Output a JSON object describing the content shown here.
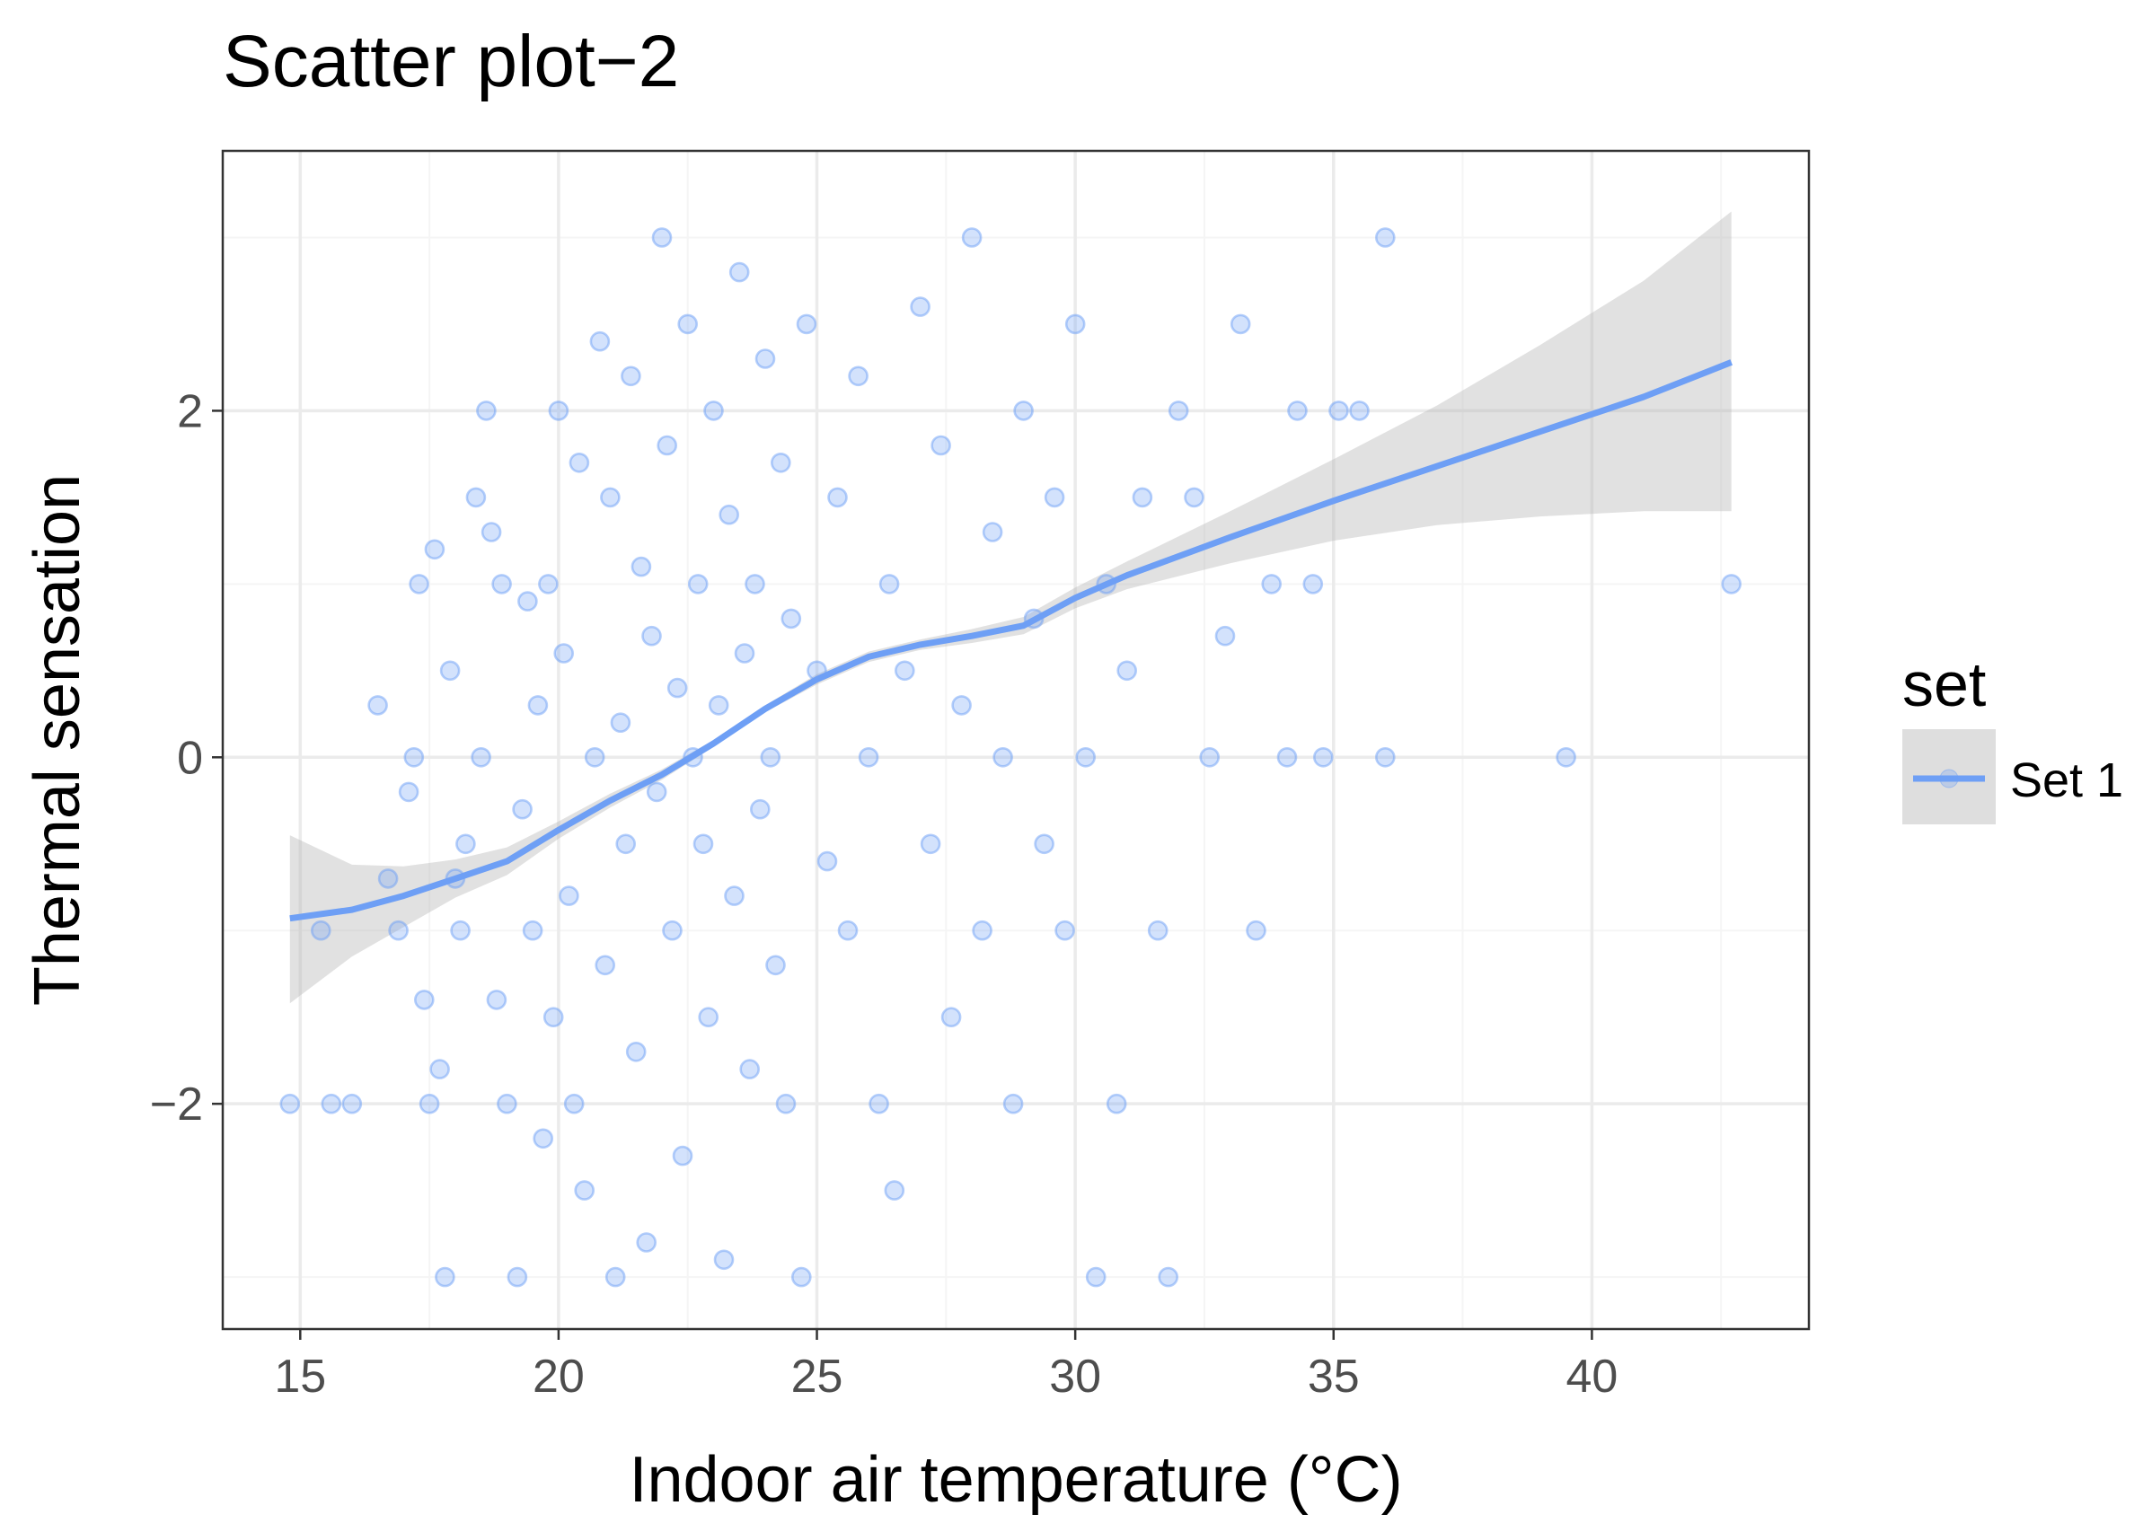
{
  "chart_data": {
    "type": "scatter",
    "title": "Scatter plot−2",
    "xlabel": "Indoor air temperature (°C)",
    "ylabel": "Thermal sensation",
    "xlim": [
      13.5,
      44.2
    ],
    "ylim": [
      -3.3,
      3.5
    ],
    "x_ticks": [
      15,
      20,
      25,
      30,
      35,
      40
    ],
    "x_tick_labels": [
      "15",
      "20",
      "25",
      "30",
      "35",
      "40"
    ],
    "y_ticks": [
      -2,
      0,
      2
    ],
    "y_tick_labels": [
      "−2",
      "0",
      "2"
    ],
    "grid": true,
    "legend": {
      "title": "set",
      "placement": "right",
      "entries": [
        {
          "label": "Set 1",
          "color": "#6e9ff5"
        }
      ]
    },
    "colors": {
      "points": "#6e9ff5",
      "smooth_line": "#6e9ff5",
      "confidence_band": "#b3b3b3"
    },
    "series": [
      {
        "name": "Set 1",
        "type": "scatter",
        "points": [
          [
            14.8,
            -2.0
          ],
          [
            15.4,
            -1.0
          ],
          [
            15.6,
            -2.0
          ],
          [
            16.0,
            -2.0
          ],
          [
            16.5,
            0.3
          ],
          [
            16.7,
            -0.7
          ],
          [
            16.9,
            -1.0
          ],
          [
            17.1,
            -0.2
          ],
          [
            17.2,
            0.0
          ],
          [
            17.3,
            1.0
          ],
          [
            17.4,
            -1.4
          ],
          [
            17.5,
            -2.0
          ],
          [
            17.6,
            1.2
          ],
          [
            17.7,
            -1.8
          ],
          [
            17.8,
            -3.0
          ],
          [
            17.9,
            0.5
          ],
          [
            18.0,
            -0.7
          ],
          [
            18.1,
            -1.0
          ],
          [
            18.2,
            -0.5
          ],
          [
            18.4,
            1.5
          ],
          [
            18.5,
            0.0
          ],
          [
            18.6,
            2.0
          ],
          [
            18.7,
            1.3
          ],
          [
            18.8,
            -1.4
          ],
          [
            18.9,
            1.0
          ],
          [
            19.0,
            -2.0
          ],
          [
            19.2,
            -3.0
          ],
          [
            19.3,
            -0.3
          ],
          [
            19.4,
            0.9
          ],
          [
            19.5,
            -1.0
          ],
          [
            19.6,
            0.3
          ],
          [
            19.7,
            -2.2
          ],
          [
            19.8,
            1.0
          ],
          [
            19.9,
            -1.5
          ],
          [
            20.0,
            2.0
          ],
          [
            20.1,
            0.6
          ],
          [
            20.2,
            -0.8
          ],
          [
            20.3,
            -2.0
          ],
          [
            20.4,
            1.7
          ],
          [
            20.5,
            -2.5
          ],
          [
            20.7,
            0.0
          ],
          [
            20.8,
            2.4
          ],
          [
            20.9,
            -1.2
          ],
          [
            21.0,
            1.5
          ],
          [
            21.1,
            -3.0
          ],
          [
            21.2,
            0.2
          ],
          [
            21.3,
            -0.5
          ],
          [
            21.4,
            2.2
          ],
          [
            21.5,
            -1.7
          ],
          [
            21.6,
            1.1
          ],
          [
            21.7,
            -2.8
          ],
          [
            21.8,
            0.7
          ],
          [
            21.9,
            -0.2
          ],
          [
            22.0,
            3.0
          ],
          [
            22.1,
            1.8
          ],
          [
            22.2,
            -1.0
          ],
          [
            22.3,
            0.4
          ],
          [
            22.4,
            -2.3
          ],
          [
            22.5,
            2.5
          ],
          [
            22.6,
            0.0
          ],
          [
            22.7,
            1.0
          ],
          [
            22.8,
            -0.5
          ],
          [
            22.9,
            -1.5
          ],
          [
            23.0,
            2.0
          ],
          [
            23.1,
            0.3
          ],
          [
            23.2,
            -2.9
          ],
          [
            23.3,
            1.4
          ],
          [
            23.4,
            -0.8
          ],
          [
            23.5,
            2.8
          ],
          [
            23.6,
            0.6
          ],
          [
            23.7,
            -1.8
          ],
          [
            23.8,
            1.0
          ],
          [
            23.9,
            -0.3
          ],
          [
            24.0,
            2.3
          ],
          [
            24.1,
            0.0
          ],
          [
            24.2,
            -1.2
          ],
          [
            24.3,
            1.7
          ],
          [
            24.4,
            -2.0
          ],
          [
            24.5,
            0.8
          ],
          [
            24.7,
            -3.0
          ],
          [
            24.8,
            2.5
          ],
          [
            25.0,
            0.5
          ],
          [
            25.2,
            -0.6
          ],
          [
            25.4,
            1.5
          ],
          [
            25.6,
            -1.0
          ],
          [
            25.8,
            2.2
          ],
          [
            26.0,
            0.0
          ],
          [
            26.2,
            -2.0
          ],
          [
            26.4,
            1.0
          ],
          [
            26.5,
            -2.5
          ],
          [
            26.7,
            0.5
          ],
          [
            27.0,
            2.6
          ],
          [
            27.2,
            -0.5
          ],
          [
            27.4,
            1.8
          ],
          [
            27.6,
            -1.5
          ],
          [
            27.8,
            0.3
          ],
          [
            28.0,
            3.0
          ],
          [
            28.2,
            -1.0
          ],
          [
            28.4,
            1.3
          ],
          [
            28.6,
            0.0
          ],
          [
            28.8,
            -2.0
          ],
          [
            29.0,
            2.0
          ],
          [
            29.2,
            0.8
          ],
          [
            29.4,
            -0.5
          ],
          [
            29.6,
            1.5
          ],
          [
            29.8,
            -1.0
          ],
          [
            30.0,
            2.5
          ],
          [
            30.2,
            0.0
          ],
          [
            30.4,
            -3.0
          ],
          [
            30.6,
            1.0
          ],
          [
            30.8,
            -2.0
          ],
          [
            31.0,
            0.5
          ],
          [
            31.3,
            1.5
          ],
          [
            31.6,
            -1.0
          ],
          [
            31.8,
            -3.0
          ],
          [
            32.0,
            2.0
          ],
          [
            32.3,
            1.5
          ],
          [
            32.6,
            0.0
          ],
          [
            32.9,
            0.7
          ],
          [
            33.2,
            2.5
          ],
          [
            33.5,
            -1.0
          ],
          [
            33.8,
            1.0
          ],
          [
            34.1,
            0.0
          ],
          [
            34.3,
            2.0
          ],
          [
            34.6,
            1.0
          ],
          [
            34.8,
            0.0
          ],
          [
            35.1,
            2.0
          ],
          [
            35.5,
            2.0
          ],
          [
            36.0,
            3.0
          ],
          [
            36.0,
            0.0
          ],
          [
            39.5,
            0.0
          ],
          [
            42.7,
            1.0
          ]
        ]
      },
      {
        "name": "Set 1",
        "type": "smooth",
        "line": [
          [
            14.8,
            -0.93
          ],
          [
            16.0,
            -0.88
          ],
          [
            17.0,
            -0.8
          ],
          [
            18.0,
            -0.7
          ],
          [
            19.0,
            -0.6
          ],
          [
            20.0,
            -0.42
          ],
          [
            21.0,
            -0.25
          ],
          [
            22.0,
            -0.1
          ],
          [
            23.0,
            0.08
          ],
          [
            24.0,
            0.28
          ],
          [
            25.0,
            0.45
          ],
          [
            26.0,
            0.58
          ],
          [
            27.0,
            0.65
          ],
          [
            28.0,
            0.7
          ],
          [
            29.0,
            0.76
          ],
          [
            30.0,
            0.92
          ],
          [
            31.0,
            1.05
          ],
          [
            33.0,
            1.27
          ],
          [
            35.0,
            1.48
          ],
          [
            37.0,
            1.68
          ],
          [
            39.0,
            1.88
          ],
          [
            41.0,
            2.08
          ],
          [
            42.7,
            2.28
          ]
        ],
        "band_upper": [
          [
            14.8,
            -0.45
          ],
          [
            16.0,
            -0.62
          ],
          [
            17.0,
            -0.63
          ],
          [
            18.0,
            -0.59
          ],
          [
            19.0,
            -0.52
          ],
          [
            20.0,
            -0.37
          ],
          [
            21.0,
            -0.21
          ],
          [
            22.0,
            -0.07
          ],
          [
            23.0,
            0.1
          ],
          [
            24.0,
            0.3
          ],
          [
            25.0,
            0.48
          ],
          [
            26.0,
            0.61
          ],
          [
            27.0,
            0.68
          ],
          [
            28.0,
            0.74
          ],
          [
            29.0,
            0.81
          ],
          [
            30.0,
            0.98
          ],
          [
            31.0,
            1.13
          ],
          [
            33.0,
            1.42
          ],
          [
            35.0,
            1.72
          ],
          [
            37.0,
            2.03
          ],
          [
            39.0,
            2.38
          ],
          [
            41.0,
            2.75
          ],
          [
            42.7,
            3.15
          ]
        ],
        "band_lower": [
          [
            14.8,
            -1.42
          ],
          [
            16.0,
            -1.15
          ],
          [
            17.0,
            -0.98
          ],
          [
            18.0,
            -0.81
          ],
          [
            19.0,
            -0.68
          ],
          [
            20.0,
            -0.47
          ],
          [
            21.0,
            -0.29
          ],
          [
            22.0,
            -0.13
          ],
          [
            23.0,
            0.06
          ],
          [
            24.0,
            0.26
          ],
          [
            25.0,
            0.42
          ],
          [
            26.0,
            0.55
          ],
          [
            27.0,
            0.62
          ],
          [
            28.0,
            0.66
          ],
          [
            29.0,
            0.71
          ],
          [
            30.0,
            0.86
          ],
          [
            31.0,
            0.97
          ],
          [
            33.0,
            1.12
          ],
          [
            35.0,
            1.25
          ],
          [
            37.0,
            1.34
          ],
          [
            39.0,
            1.39
          ],
          [
            41.0,
            1.42
          ],
          [
            42.7,
            1.42
          ]
        ]
      }
    ]
  }
}
